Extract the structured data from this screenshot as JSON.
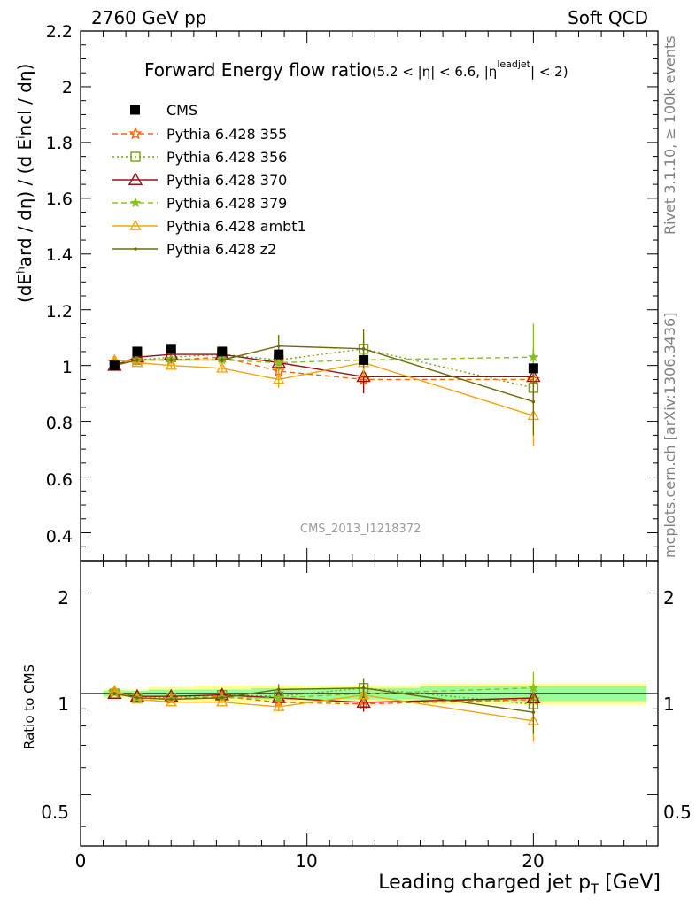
{
  "header": {
    "left": "2760 GeV pp",
    "right": "Soft QCD"
  },
  "side_labels": {
    "rivet": "Rivet 3.1.10, ≥ 100k events",
    "mcplots": "mcplots.cern.ch [arXiv:1306.3436]"
  },
  "watermark": "CMS_2013_I1218372",
  "plot_title": {
    "main": "Forward Energy flow ratio",
    "cond_a": "(5.2 < |η| < 6.6, |η",
    "cond_sup": "leadjet",
    "cond_b": "| < 2)"
  },
  "main_ylabel": {
    "p1": "(dE",
    "sup": "h",
    "p2": "ard / dη) / (d E",
    "sup2": "i",
    "p3": "ncl / dη)"
  },
  "ratio_ylabel": "Ratio to CMS",
  "xlabel": {
    "p1": "Leading charged jet p",
    "sub": "T",
    "p2": " [GeV]"
  },
  "ticks": {
    "main_y": [
      "0.4",
      "0.6",
      "0.8",
      "1",
      "1.2",
      "1.4",
      "1.6",
      "1.8",
      "2",
      "2.2"
    ],
    "ratio_y": [
      "0.5",
      "1",
      "2"
    ],
    "x": [
      "0",
      "10",
      "20"
    ]
  },
  "colors": {
    "cms": "#000000",
    "p355": "#ff6600",
    "p356": "#77a11a",
    "p370": "#9a1111",
    "p379": "#88c020",
    "ambt1": "#f2a50f",
    "z2": "#6b6b0a",
    "band_inner": "#99ff99",
    "band_outer": "#ffff99"
  },
  "chart_data": {
    "type": "line",
    "xlabel": "Leading charged jet pT [GeV]",
    "ylabel": "(dEhard / dη) / (d Eincl / dη)",
    "xlim": [
      0,
      25.5
    ],
    "ylim": [
      0.3,
      2.2
    ],
    "ratio_ylim": [
      0.35,
      2.5
    ],
    "ratio_ylog": true,
    "x": [
      1.5,
      2.5,
      4.0,
      6.25,
      8.75,
      12.5,
      20.0
    ],
    "data": {
      "name": "CMS",
      "values": [
        1.0,
        1.05,
        1.06,
        1.05,
        1.04,
        1.02,
        0.99
      ],
      "bin_edges": [
        1,
        2,
        3,
        5,
        7.5,
        10,
        15,
        25
      ],
      "band_inner": [
        0.02,
        0.02,
        0.03,
        0.03,
        0.04,
        0.04,
        0.05
      ],
      "band_outer": [
        0.03,
        0.03,
        0.05,
        0.06,
        0.06,
        0.06,
        0.07
      ]
    },
    "series": [
      {
        "name": "Pythia 6.428 355",
        "color_key": "p355",
        "style": "dashed",
        "marker": "star",
        "values": [
          1.01,
          1.02,
          1.02,
          1.03,
          0.98,
          0.95,
          0.95
        ],
        "err": [
          0.01,
          0.01,
          0.01,
          0.01,
          0.03,
          0.05,
          0.08
        ]
      },
      {
        "name": "Pythia 6.428 356",
        "color_key": "p356",
        "style": "dotted",
        "marker": "square",
        "values": [
          1.0,
          1.02,
          1.03,
          1.04,
          1.02,
          1.06,
          0.92
        ],
        "err": [
          0.01,
          0.01,
          0.01,
          0.01,
          0.03,
          0.05,
          0.09
        ]
      },
      {
        "name": "Pythia 6.428 370",
        "color_key": "p370",
        "style": "solid",
        "marker": "triangle",
        "values": [
          1.0,
          1.03,
          1.04,
          1.04,
          1.01,
          0.96,
          0.96
        ],
        "err": [
          0.01,
          0.01,
          0.01,
          0.01,
          0.03,
          0.06,
          0.1
        ]
      },
      {
        "name": "Pythia 6.428 379",
        "color_key": "p379",
        "style": "dashed",
        "marker": "smallstar",
        "values": [
          1.01,
          1.02,
          1.02,
          1.02,
          1.01,
          1.02,
          1.03
        ],
        "err": [
          0.01,
          0.01,
          0.01,
          0.01,
          0.03,
          0.05,
          0.12
        ]
      },
      {
        "name": "Pythia 6.428 ambt1",
        "color_key": "ambt1",
        "style": "solid",
        "marker": "opentriangle",
        "values": [
          1.02,
          1.01,
          1.0,
          0.99,
          0.95,
          1.01,
          0.82
        ],
        "err": [
          0.01,
          0.01,
          0.01,
          0.01,
          0.03,
          0.05,
          0.11
        ]
      },
      {
        "name": "Pythia 6.428 z2",
        "color_key": "z2",
        "style": "solid",
        "marker": "dot",
        "values": [
          1.0,
          1.02,
          1.02,
          1.02,
          1.07,
          1.06,
          0.87
        ],
        "err": [
          0.01,
          0.01,
          0.01,
          0.01,
          0.04,
          0.07,
          0.12
        ]
      }
    ]
  }
}
